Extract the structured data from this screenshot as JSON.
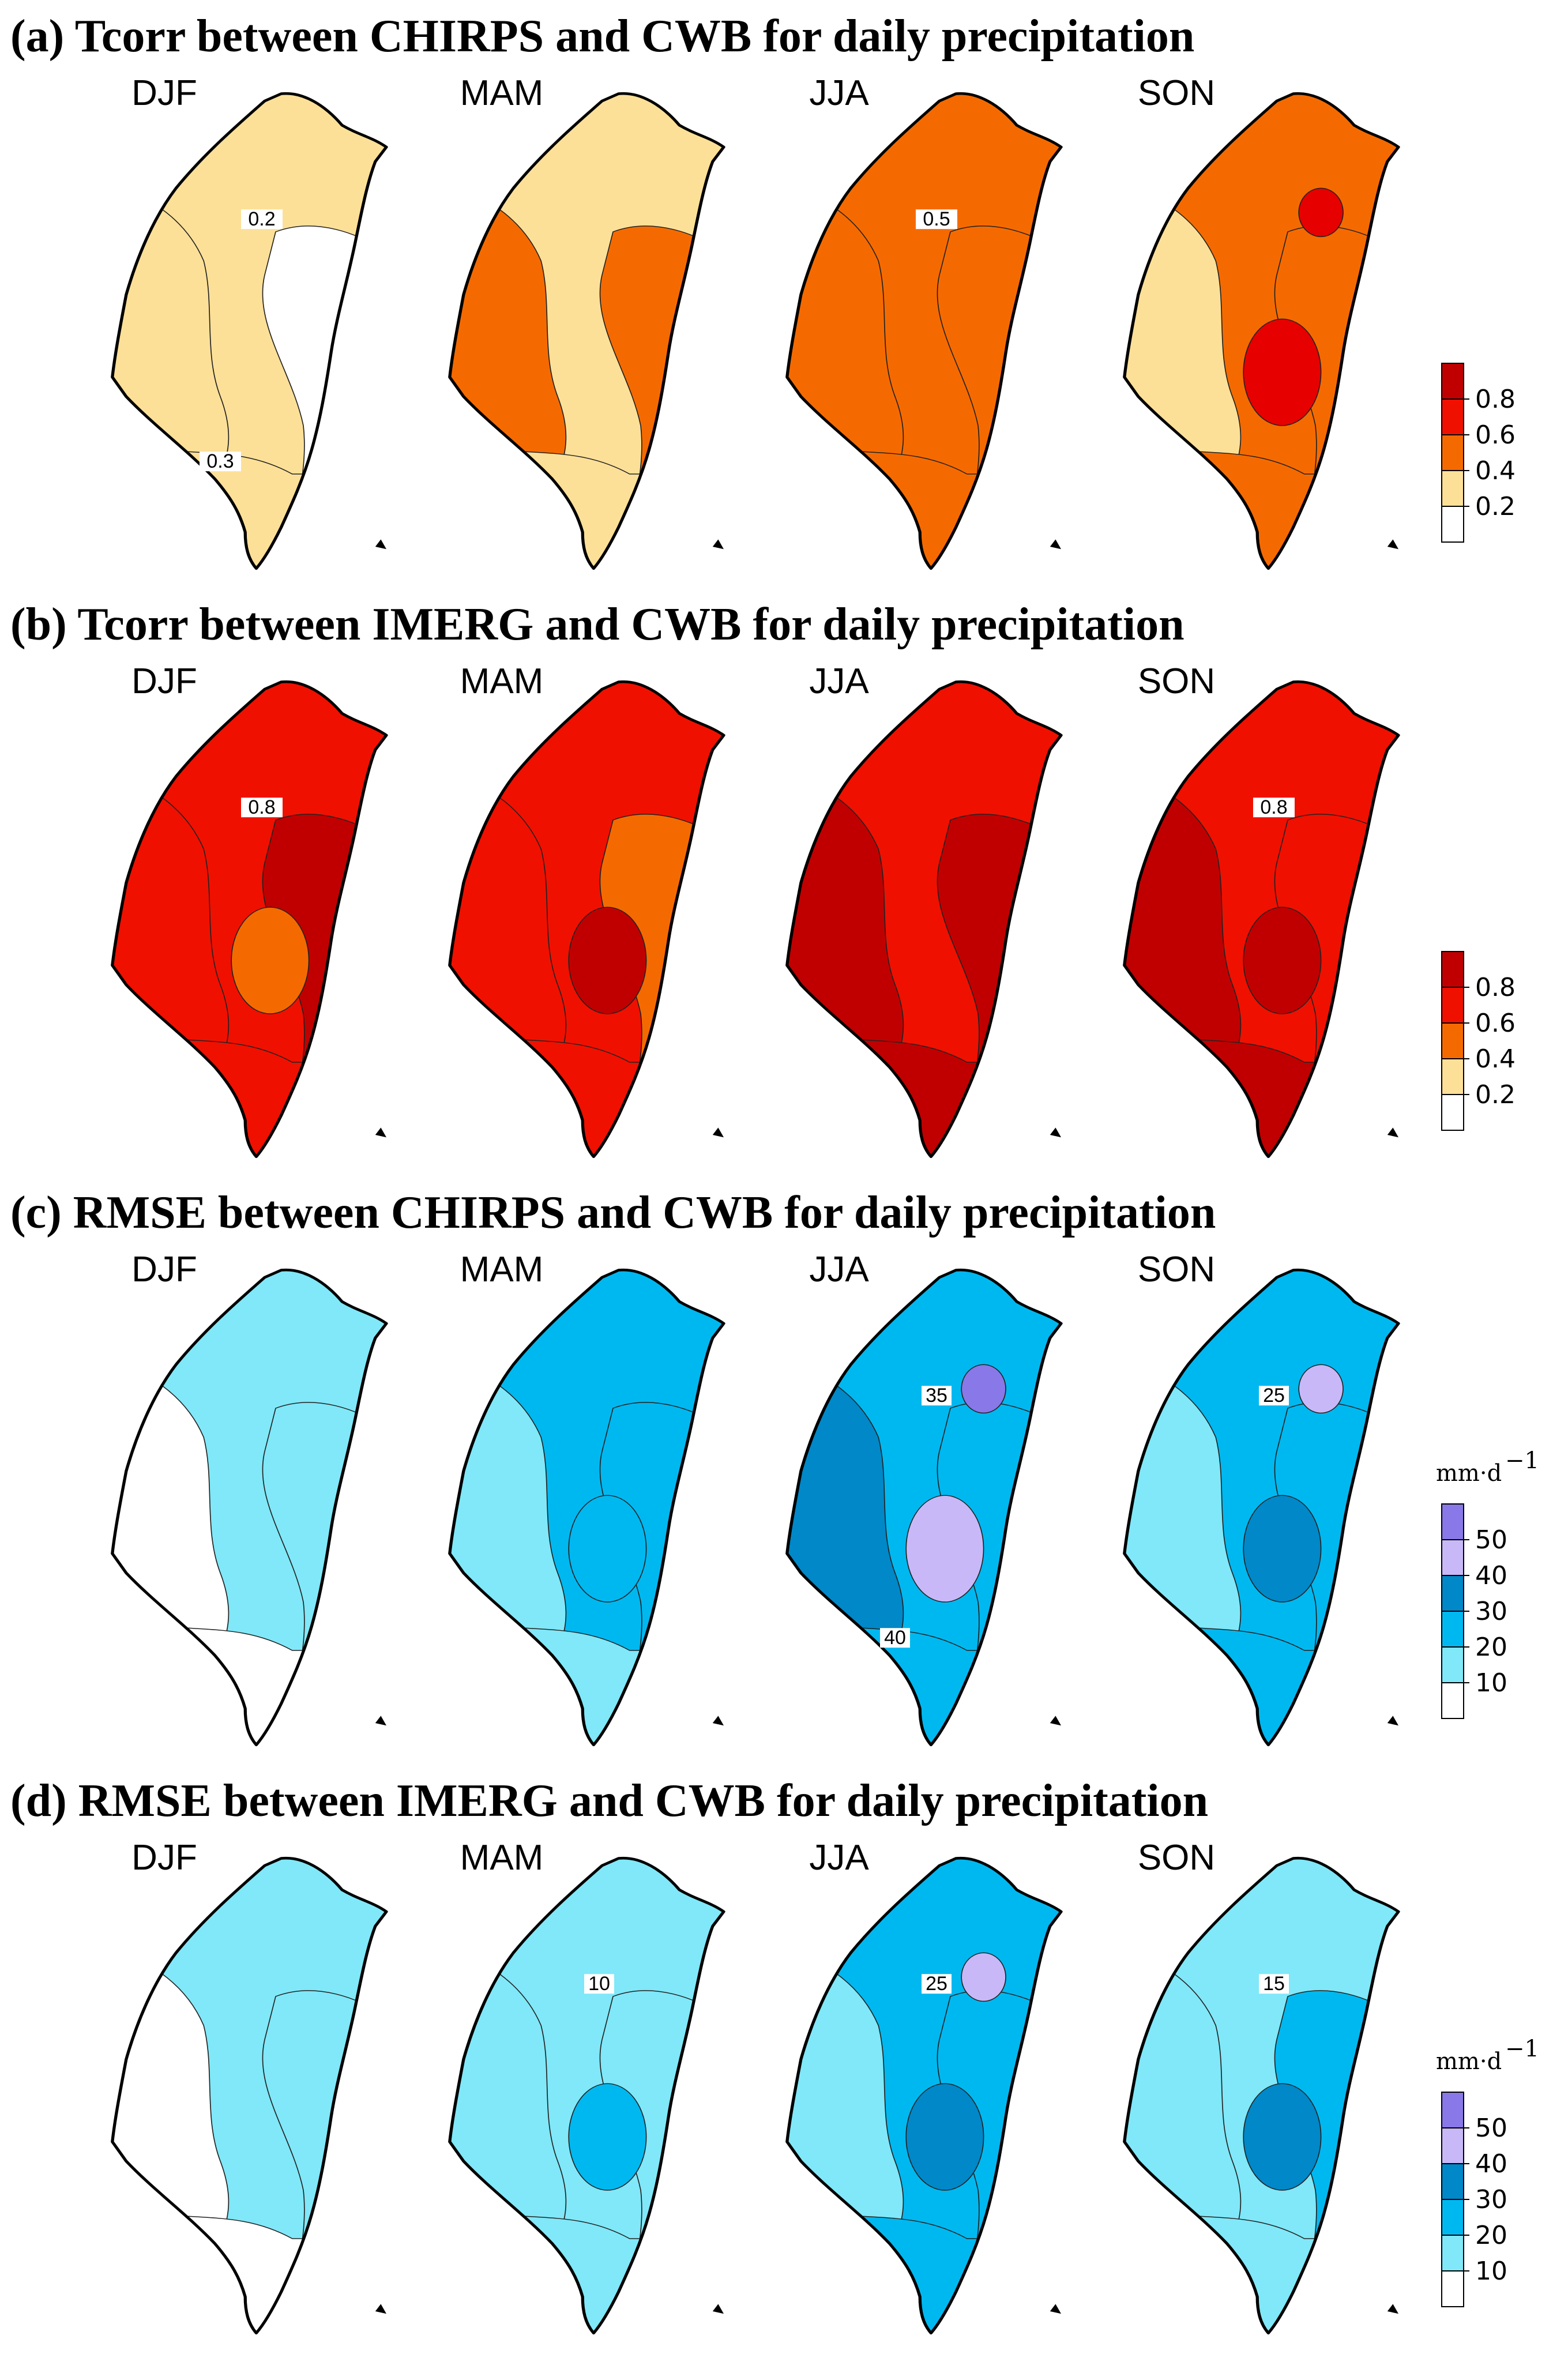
{
  "seasons": [
    "DJF",
    "MAM",
    "JJA",
    "SON"
  ],
  "panels": [
    {
      "title": "(a) Tcorr between CHIRPS and CWB for daily precipitation",
      "scale": "corr",
      "maps": [
        {
          "season": "DJF",
          "zones": [
            "#fde098",
            "#fde098",
            "#ffffff",
            "#fde098"
          ],
          "blobs": [],
          "label": "0.2",
          "label2": "0.3"
        },
        {
          "season": "MAM",
          "zones": [
            "#fde098",
            "#f56a00",
            "#f56a00",
            "#fde098"
          ],
          "blobs": [],
          "label": "",
          "label2": ""
        },
        {
          "season": "JJA",
          "zones": [
            "#f56a00",
            "#f56a00",
            "#f56a00",
            "#f56a00"
          ],
          "blobs": [],
          "label": "0.5",
          "label2": ""
        },
        {
          "season": "SON",
          "zones": [
            "#f56a00",
            "#fde098",
            "#f56a00",
            "#f56a00"
          ],
          "blobs": [
            "#e60000",
            "#e60000"
          ],
          "label": "",
          "label2": ""
        }
      ],
      "colorbar": {
        "unit": "",
        "colors": [
          "#ffffff",
          "#fde098",
          "#f56a00",
          "#f01000",
          "#c00000"
        ],
        "ticks": [
          "0.2",
          "0.4",
          "0.6",
          "0.8"
        ]
      }
    },
    {
      "title": "(b) Tcorr between  IMERG and CWB for daily precipitation",
      "scale": "corr",
      "maps": [
        {
          "season": "DJF",
          "zones": [
            "#f01000",
            "#f01000",
            "#c00000",
            "#f01000"
          ],
          "blobs": [
            "#f56a00"
          ],
          "label": "0.8",
          "label2": ""
        },
        {
          "season": "MAM",
          "zones": [
            "#f01000",
            "#f01000",
            "#f56a00",
            "#f01000"
          ],
          "blobs": [
            "#c00000"
          ],
          "label": "",
          "label2": ""
        },
        {
          "season": "JJA",
          "zones": [
            "#f01000",
            "#c00000",
            "#c00000",
            "#c00000"
          ],
          "blobs": [],
          "label": "",
          "label2": ""
        },
        {
          "season": "SON",
          "zones": [
            "#f01000",
            "#c00000",
            "#f01000",
            "#c00000"
          ],
          "blobs": [
            "#c00000"
          ],
          "label": "0.8",
          "label2": ""
        }
      ],
      "colorbar": {
        "unit": "",
        "colors": [
          "#ffffff",
          "#fde098",
          "#f56a00",
          "#f01000",
          "#c00000"
        ],
        "ticks": [
          "0.2",
          "0.4",
          "0.6",
          "0.8"
        ]
      }
    },
    {
      "title": "(c) RMSE between CHIRPS and CWB for daily precipitation",
      "scale": "rmse",
      "maps": [
        {
          "season": "DJF",
          "zones": [
            "#80e8f8",
            "#ffffff",
            "#80e8f8",
            "#ffffff"
          ],
          "blobs": [],
          "label": "",
          "label2": ""
        },
        {
          "season": "MAM",
          "zones": [
            "#00b8f0",
            "#80e8f8",
            "#00b8f0",
            "#80e8f8"
          ],
          "blobs": [
            "#00b8f0"
          ],
          "label": "",
          "label2": ""
        },
        {
          "season": "JJA",
          "zones": [
            "#00b8f0",
            "#0088c8",
            "#00b8f0",
            "#00b8f0"
          ],
          "blobs": [
            "#c8b8f8",
            "#8878e8"
          ],
          "label": "35",
          "label2": "40"
        },
        {
          "season": "SON",
          "zones": [
            "#00b8f0",
            "#80e8f8",
            "#00b8f0",
            "#00b8f0"
          ],
          "blobs": [
            "#0088c8",
            "#c8b8f8"
          ],
          "label": "25",
          "label2": ""
        }
      ],
      "colorbar": {
        "unit": "mm·d",
        "colors": [
          "#ffffff",
          "#80e8f8",
          "#00b8f0",
          "#0088c8",
          "#c8b8f8",
          "#8878e8"
        ],
        "ticks": [
          "10",
          "20",
          "30",
          "40",
          "50"
        ]
      }
    },
    {
      "title": "(d) RMSE between  IMERG and CWB for daily precipitation",
      "scale": "rmse",
      "maps": [
        {
          "season": "DJF",
          "zones": [
            "#80e8f8",
            "#ffffff",
            "#80e8f8",
            "#ffffff"
          ],
          "blobs": [],
          "label": "",
          "label2": ""
        },
        {
          "season": "MAM",
          "zones": [
            "#80e8f8",
            "#80e8f8",
            "#80e8f8",
            "#80e8f8"
          ],
          "blobs": [
            "#00b8f0"
          ],
          "label": "10",
          "label2": ""
        },
        {
          "season": "JJA",
          "zones": [
            "#00b8f0",
            "#80e8f8",
            "#00b8f0",
            "#00b8f0"
          ],
          "blobs": [
            "#0088c8",
            "#c8b8f8"
          ],
          "label": "25",
          "label2": ""
        },
        {
          "season": "SON",
          "zones": [
            "#80e8f8",
            "#80e8f8",
            "#00b8f0",
            "#80e8f8"
          ],
          "blobs": [
            "#0088c8"
          ],
          "label": "15",
          "label2": ""
        }
      ],
      "colorbar": {
        "unit": "mm·d",
        "colors": [
          "#ffffff",
          "#80e8f8",
          "#00b8f0",
          "#0088c8",
          "#c8b8f8",
          "#8878e8"
        ],
        "ticks": [
          "10",
          "20",
          "30",
          "40",
          "50"
        ]
      }
    }
  ]
}
